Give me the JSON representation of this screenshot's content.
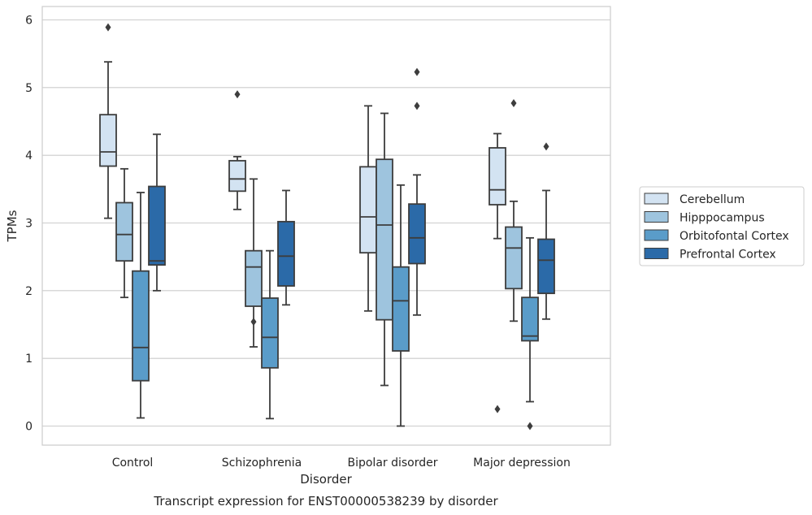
{
  "chart_data": {
    "type": "box",
    "xlabel": "Disorder",
    "ylabel": "TPMs",
    "caption": "Transcript expression for ENST00000538239 by disorder",
    "ylim": [
      -0.3,
      6.2
    ],
    "yticks": [
      "0",
      "1",
      "2",
      "3",
      "4",
      "5",
      "6"
    ],
    "grid": true,
    "legend_position": "right",
    "categories": [
      "Control",
      "Schizophrenia",
      "Bipolar disorder",
      "Major depression"
    ],
    "series": [
      {
        "name": "Cerebellum",
        "color": "#d3e3f2",
        "boxes": [
          {
            "whisker_low": 3.07,
            "q1": 3.84,
            "median": 4.05,
            "q3": 4.6,
            "whisker_high": 5.38,
            "outliers": [
              5.89
            ]
          },
          {
            "whisker_low": 3.2,
            "q1": 3.47,
            "median": 3.65,
            "q3": 3.92,
            "whisker_high": 3.98,
            "outliers": [
              4.9
            ]
          },
          {
            "whisker_low": 1.7,
            "q1": 2.56,
            "median": 3.09,
            "q3": 3.83,
            "whisker_high": 4.73,
            "outliers": []
          },
          {
            "whisker_low": 2.77,
            "q1": 3.27,
            "median": 3.49,
            "q3": 4.11,
            "whisker_high": 4.32,
            "outliers": [
              0.25
            ]
          }
        ]
      },
      {
        "name": "Hipppocampus",
        "color": "#9ec4de",
        "boxes": [
          {
            "whisker_low": 1.9,
            "q1": 2.44,
            "median": 2.83,
            "q3": 3.3,
            "whisker_high": 3.8,
            "outliers": []
          },
          {
            "whisker_low": 1.17,
            "q1": 1.77,
            "median": 2.35,
            "q3": 2.59,
            "whisker_high": 3.65,
            "outliers": [
              1.54
            ]
          },
          {
            "whisker_low": 0.6,
            "q1": 1.57,
            "median": 2.97,
            "q3": 3.94,
            "whisker_high": 4.62,
            "outliers": []
          },
          {
            "whisker_low": 1.55,
            "q1": 2.03,
            "median": 2.63,
            "q3": 2.94,
            "whisker_high": 3.32,
            "outliers": [
              4.77
            ]
          }
        ]
      },
      {
        "name": "Orbitofontal Cortex",
        "color": "#5a9cc9",
        "boxes": [
          {
            "whisker_low": 0.12,
            "q1": 0.67,
            "median": 1.16,
            "q3": 2.29,
            "whisker_high": 3.45,
            "outliers": []
          },
          {
            "whisker_low": 0.11,
            "q1": 0.86,
            "median": 1.31,
            "q3": 1.89,
            "whisker_high": 2.59,
            "outliers": []
          },
          {
            "whisker_low": 0.0,
            "q1": 1.11,
            "median": 1.85,
            "q3": 2.35,
            "whisker_high": 3.56,
            "outliers": []
          },
          {
            "whisker_low": 0.36,
            "q1": 1.26,
            "median": 1.33,
            "q3": 1.9,
            "whisker_high": 2.78,
            "outliers": [
              0.0
            ]
          }
        ]
      },
      {
        "name": "Prefrontal Cortex",
        "color": "#2b6aa8",
        "boxes": [
          {
            "whisker_low": 2.0,
            "q1": 2.38,
            "median": 2.44,
            "q3": 3.54,
            "whisker_high": 4.31,
            "outliers": []
          },
          {
            "whisker_low": 1.79,
            "q1": 2.07,
            "median": 2.51,
            "q3": 3.02,
            "whisker_high": 3.48,
            "outliers": []
          },
          {
            "whisker_low": 1.64,
            "q1": 2.4,
            "median": 2.78,
            "q3": 3.28,
            "whisker_high": 3.71,
            "outliers": [
              4.73,
              5.23
            ]
          },
          {
            "whisker_low": 1.58,
            "q1": 1.96,
            "median": 2.45,
            "q3": 2.76,
            "whisker_high": 3.48,
            "outliers": [
              4.13
            ]
          }
        ]
      }
    ]
  }
}
